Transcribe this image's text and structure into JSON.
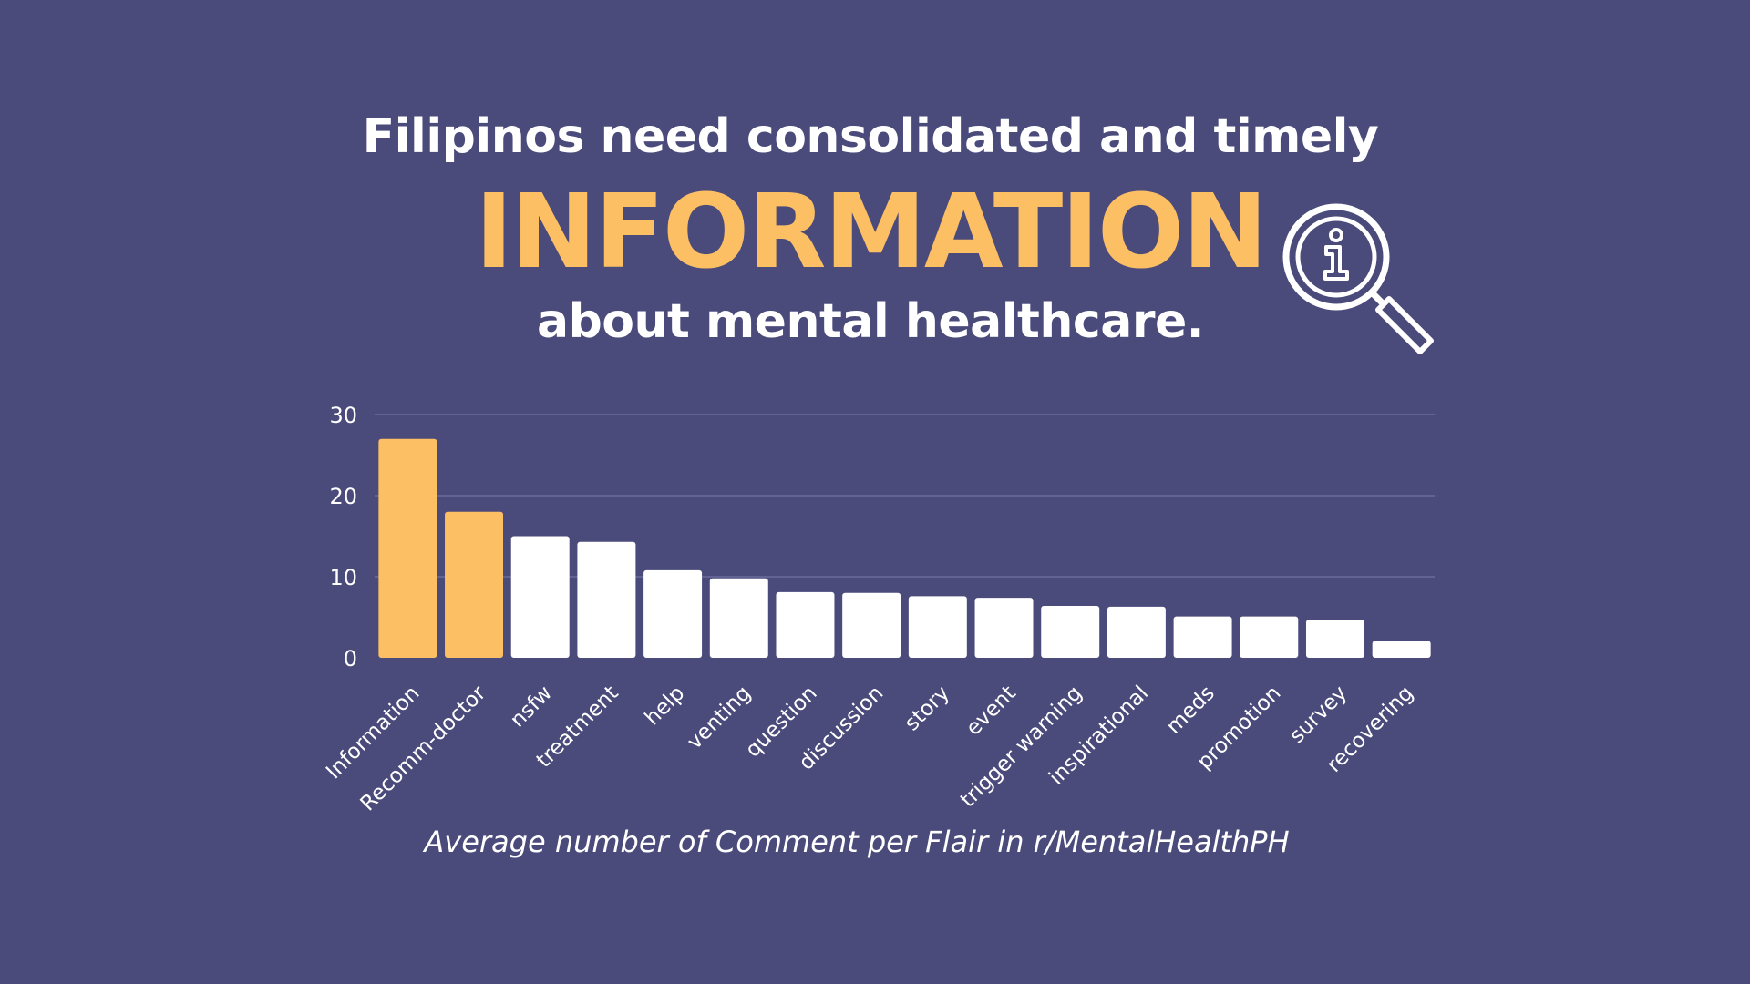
{
  "headline": {
    "line1": "Filipinos need consolidated and timely",
    "line2": "INFORMATION",
    "line3": "about mental healthcare.",
    "icon": "info-magnifier-icon"
  },
  "caption": "Average number of Comment per Flair in r/MentalHealthPH",
  "colors": {
    "background": "#4a4a7b",
    "highlight": "#fdbf63",
    "bar": "#ffffff",
    "text": "#ffffff"
  },
  "chart_data": {
    "type": "bar",
    "categories": [
      "Information",
      "Recomm-doctor",
      "nsfw",
      "treatment",
      "help",
      "venting",
      "question",
      "discussion",
      "story",
      "event",
      "trigger warning",
      "inspirational",
      "meds",
      "promotion",
      "survey",
      "recovering"
    ],
    "values": [
      27,
      18,
      15,
      14.3,
      10.8,
      9.8,
      8.1,
      8.0,
      7.6,
      7.4,
      6.4,
      6.3,
      5.1,
      5.1,
      4.7,
      2.1
    ],
    "highlighted": [
      "Information",
      "Recomm-doctor"
    ],
    "ylim": [
      0,
      30
    ],
    "yticks": [
      0,
      10,
      20,
      30
    ],
    "grid": true,
    "xlabel": "",
    "ylabel": ""
  }
}
